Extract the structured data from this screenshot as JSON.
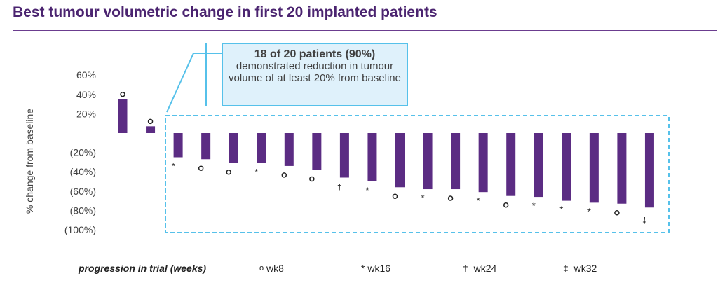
{
  "title": "Best tumour volumetric change in first 20 implanted patients",
  "callout": {
    "headline": "18 of 20 patients (90%)",
    "body": "demonstrated reduction in tumour volume of at least 20% from baseline"
  },
  "legend": {
    "title": "progression in trial (weeks)",
    "items": [
      {
        "marker": "o",
        "label": "wk8"
      },
      {
        "marker": "*",
        "label": "wk16"
      },
      {
        "marker": "†",
        "label": "wk24"
      },
      {
        "marker": "‡",
        "label": "wk32"
      }
    ]
  },
  "colors": {
    "bar": "#5b2c83",
    "highlight": "#56c1ea",
    "title": "#4b2470"
  },
  "chart_data": {
    "type": "bar",
    "ylabel": "% change from baseline",
    "ylim": [
      -100,
      60
    ],
    "yticks": [
      60,
      40,
      20,
      -20,
      -40,
      -60,
      -80,
      -100
    ],
    "ytick_labels": [
      "60%",
      "40%",
      "20%",
      "(20%)",
      "(40%)",
      "(60%)",
      "(80%)",
      "(100%)"
    ],
    "values": [
      35,
      7,
      -25,
      -27,
      -31,
      -31,
      -34,
      -38,
      -46,
      -50,
      -56,
      -58,
      -58,
      -61,
      -65,
      -66,
      -70,
      -72,
      -73,
      -77
    ],
    "markers": [
      "o",
      "o",
      "*",
      "o",
      "o",
      "*",
      "o",
      "o",
      "†",
      "*",
      "o",
      "*",
      "o",
      "*",
      "o",
      "*",
      "*",
      "*",
      "o",
      "‡"
    ]
  }
}
